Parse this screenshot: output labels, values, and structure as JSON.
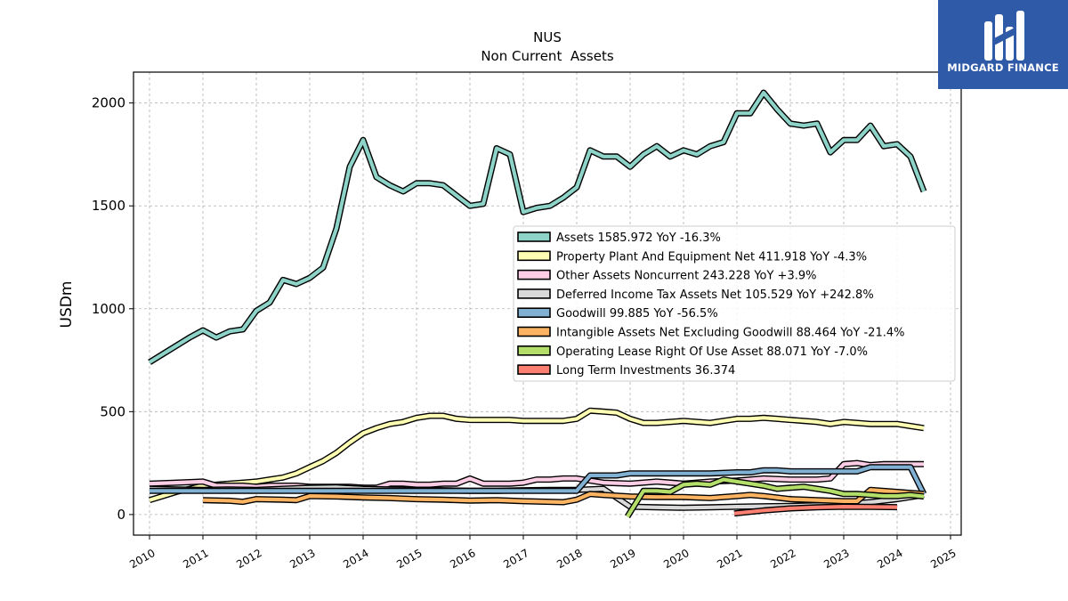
{
  "brand": {
    "name": "MIDGARD FINANCE",
    "bg_color": "#2f5aa8"
  },
  "chart_data": {
    "type": "line",
    "title": "NUS",
    "subtitle": "Non Current  Assets",
    "ylabel": "USDm",
    "xlabel": "",
    "xlim": [
      2009.7,
      2025.2
    ],
    "ylim": [
      -100,
      2150
    ],
    "grid": true,
    "legend_position": "center-right",
    "x_ticks": [
      2010,
      2011,
      2012,
      2013,
      2014,
      2015,
      2016,
      2017,
      2018,
      2019,
      2020,
      2021,
      2022,
      2023,
      2024,
      2025
    ],
    "x_tick_labels": [
      "2010",
      "2011",
      "2012",
      "2013",
      "2014",
      "2015",
      "2016",
      "2017",
      "2018",
      "2019",
      "2020",
      "2021",
      "2022",
      "2023",
      "2024",
      "2025"
    ],
    "y_ticks": [
      0,
      500,
      1000,
      1500,
      2000
    ],
    "y_tick_labels": [
      "0",
      "500",
      "1000",
      "1500",
      "2000"
    ],
    "series": [
      {
        "name": "Assets",
        "legend_label": "Assets  1585.972 YoY -16.3%",
        "color": "#8dd3c7",
        "x": [
          2010.0,
          2010.25,
          2010.5,
          2010.75,
          2011.0,
          2011.25,
          2011.5,
          2011.75,
          2012.0,
          2012.25,
          2012.5,
          2012.75,
          2013.0,
          2013.25,
          2013.5,
          2013.75,
          2014.0,
          2014.25,
          2014.5,
          2014.75,
          2015.0,
          2015.25,
          2015.5,
          2015.75,
          2016.0,
          2016.25,
          2016.5,
          2016.75,
          2017.0,
          2017.25,
          2017.5,
          2017.75,
          2018.0,
          2018.25,
          2018.5,
          2018.75,
          2019.0,
          2019.25,
          2019.5,
          2019.75,
          2020.0,
          2020.25,
          2020.5,
          2020.75,
          2021.0,
          2021.25,
          2021.5,
          2021.75,
          2022.0,
          2022.25,
          2022.5,
          2022.75,
          2023.0,
          2023.25,
          2023.5,
          2023.75,
          2024.0,
          2024.25,
          2024.5
        ],
        "y": [
          740,
          780,
          820,
          860,
          895,
          860,
          890,
          900,
          990,
          1030,
          1140,
          1120,
          1150,
          1200,
          1390,
          1690,
          1820,
          1640,
          1600,
          1570,
          1610,
          1610,
          1600,
          1550,
          1500,
          1510,
          1780,
          1750,
          1470,
          1490,
          1500,
          1540,
          1590,
          1770,
          1740,
          1740,
          1690,
          1750,
          1790,
          1740,
          1770,
          1750,
          1790,
          1810,
          1950,
          1950,
          2050,
          1970,
          1900,
          1890,
          1900,
          1760,
          1820,
          1820,
          1890,
          1790,
          1800,
          1740,
          1570
        ]
      },
      {
        "name": "Property Plant And Equipment Net",
        "legend_label": "Property Plant And Equipment Net  411.918 YoY -4.3%",
        "color": "#ffffb3",
        "x": [
          2010.0,
          2010.25,
          2010.5,
          2010.75,
          2011.0,
          2011.25,
          2011.5,
          2011.75,
          2012.0,
          2012.25,
          2012.5,
          2012.75,
          2013.0,
          2013.25,
          2013.5,
          2013.75,
          2014.0,
          2014.25,
          2014.5,
          2014.75,
          2015.0,
          2015.25,
          2015.5,
          2015.75,
          2016.0,
          2016.25,
          2016.5,
          2016.75,
          2017.0,
          2017.25,
          2017.5,
          2017.75,
          2018.0,
          2018.25,
          2018.5,
          2018.75,
          2019.0,
          2019.25,
          2019.5,
          2019.75,
          2020.0,
          2020.25,
          2020.5,
          2020.75,
          2021.0,
          2021.25,
          2021.5,
          2021.75,
          2022.0,
          2022.25,
          2022.5,
          2022.75,
          2023.0,
          2023.25,
          2023.5,
          2023.75,
          2024.0,
          2024.25,
          2024.5
        ],
        "y": [
          70,
          90,
          110,
          125,
          140,
          145,
          150,
          155,
          160,
          170,
          180,
          200,
          230,
          260,
          300,
          350,
          395,
          420,
          440,
          450,
          470,
          480,
          480,
          465,
          460,
          460,
          460,
          460,
          455,
          455,
          455,
          455,
          465,
          505,
          500,
          495,
          465,
          445,
          445,
          450,
          455,
          450,
          445,
          455,
          465,
          465,
          470,
          465,
          460,
          455,
          450,
          440,
          450,
          445,
          440,
          440,
          440,
          430,
          420
        ]
      },
      {
        "name": "Other Assets Noncurrent",
        "legend_label": "Other Assets Noncurrent  243.228 YoY +3.9%",
        "color": "#fccde5",
        "x": [
          2010.0,
          2010.5,
          2011.0,
          2011.25,
          2011.5,
          2011.75,
          2012.0,
          2012.25,
          2012.5,
          2012.75,
          2013.0,
          2013.25,
          2013.5,
          2013.75,
          2014.0,
          2014.25,
          2014.5,
          2014.75,
          2015.0,
          2015.25,
          2015.5,
          2015.75,
          2016.0,
          2016.25,
          2016.5,
          2016.75,
          2017.0,
          2017.25,
          2017.5,
          2017.75,
          2018.0,
          2018.5,
          2019.0,
          2019.5,
          2020.0,
          2020.5,
          2021.0,
          2021.5,
          2022.0,
          2022.5,
          2022.75,
          2023.0,
          2023.25,
          2023.5,
          2023.75,
          2024.0,
          2024.25,
          2024.5
        ],
        "y": [
          150,
          155,
          160,
          140,
          140,
          140,
          135,
          140,
          140,
          140,
          135,
          135,
          135,
          135,
          130,
          130,
          150,
          150,
          145,
          145,
          150,
          150,
          175,
          150,
          150,
          150,
          155,
          170,
          170,
          175,
          175,
          155,
          150,
          160,
          150,
          160,
          165,
          175,
          170,
          170,
          175,
          245,
          250,
          240,
          245,
          245,
          245,
          245
        ]
      },
      {
        "name": "Deferred Income Tax Assets Net",
        "legend_label": "Deferred Income Tax Assets Net  105.529 YoY +242.8%",
        "color": "#d9d9d9",
        "x": [
          2010.0,
          2010.5,
          2011.0,
          2011.5,
          2012.0,
          2012.5,
          2013.0,
          2013.5,
          2014.0,
          2014.5,
          2015.0,
          2015.5,
          2016.0,
          2016.5,
          2017.0,
          2017.5,
          2018.0,
          2018.5,
          2019.0,
          2019.5,
          2020.0,
          2020.5,
          2021.0,
          2021.5,
          2022.0,
          2022.5,
          2023.0,
          2023.5,
          2024.0,
          2024.5
        ],
        "y": [
          125,
          122,
          120,
          122,
          120,
          125,
          130,
          132,
          125,
          122,
          120,
          118,
          115,
          115,
          118,
          120,
          120,
          125,
          38,
          35,
          33,
          35,
          38,
          40,
          42,
          45,
          50,
          60,
          75,
          95
        ]
      },
      {
        "name": "Goodwill",
        "legend_label": "Goodwill  99.885 YoY -56.5%",
        "color": "#80b1d3",
        "x": [
          2010.0,
          2011.0,
          2012.0,
          2013.0,
          2014.0,
          2015.0,
          2016.0,
          2017.0,
          2017.75,
          2018.0,
          2018.25,
          2018.75,
          2019.0,
          2019.5,
          2020.0,
          2020.5,
          2021.0,
          2021.25,
          2021.5,
          2021.75,
          2022.0,
          2022.5,
          2023.0,
          2023.25,
          2023.5,
          2024.0,
          2024.25,
          2024.5
        ],
        "y": [
          115,
          115,
          115,
          115,
          115,
          115,
          115,
          115,
          115,
          115,
          190,
          190,
          200,
          200,
          200,
          200,
          205,
          205,
          215,
          215,
          210,
          210,
          210,
          210,
          230,
          230,
          230,
          100
        ]
      },
      {
        "name": "Intangible Assets Net Excluding Goodwill",
        "legend_label": "Intangible Assets Net Excluding Goodwill  88.464 YoY -21.4%",
        "color": "#fdb462",
        "x": [
          2011.0,
          2011.5,
          2011.75,
          2012.0,
          2012.5,
          2012.75,
          2013.0,
          2013.5,
          2014.0,
          2014.5,
          2015.0,
          2015.5,
          2016.0,
          2016.5,
          2017.0,
          2017.5,
          2017.75,
          2018.0,
          2018.25,
          2018.5,
          2019.0,
          2019.5,
          2020.0,
          2020.5,
          2021.0,
          2021.25,
          2021.5,
          2022.0,
          2022.5,
          2023.0,
          2023.25,
          2023.5,
          2024.0,
          2024.5
        ],
        "y": [
          70,
          67,
          62,
          75,
          72,
          70,
          90,
          88,
          83,
          80,
          75,
          72,
          68,
          70,
          65,
          62,
          60,
          72,
          100,
          95,
          88,
          85,
          85,
          80,
          90,
          95,
          90,
          75,
          70,
          65,
          65,
          120,
          110,
          100
        ]
      },
      {
        "name": "Operating Lease Right Of Use Asset",
        "legend_label": "Operating Lease Right Of Use Asset  88.071 YoY -7.0%",
        "color": "#b3de69",
        "x": [
          2018.95,
          2019.25,
          2019.5,
          2019.75,
          2020.0,
          2020.25,
          2020.5,
          2020.75,
          2021.0,
          2021.25,
          2021.5,
          2021.75,
          2022.0,
          2022.25,
          2022.5,
          2022.75,
          2023.0,
          2023.25,
          2023.5,
          2023.75,
          2024.0,
          2024.25,
          2024.5
        ],
        "y": [
          -10,
          115,
          115,
          110,
          145,
          150,
          145,
          170,
          160,
          150,
          140,
          125,
          130,
          135,
          125,
          115,
          100,
          100,
          95,
          90,
          90,
          95,
          88
        ]
      },
      {
        "name": "Long Term Investments",
        "legend_label": "Long Term Investments  36.374",
        "color": "#fb8072",
        "x": [
          2020.95,
          2021.5,
          2022.0,
          2022.5,
          2023.0,
          2023.5,
          2024.0
        ],
        "y": [
          5,
          20,
          30,
          35,
          38,
          37,
          36
        ]
      }
    ]
  }
}
